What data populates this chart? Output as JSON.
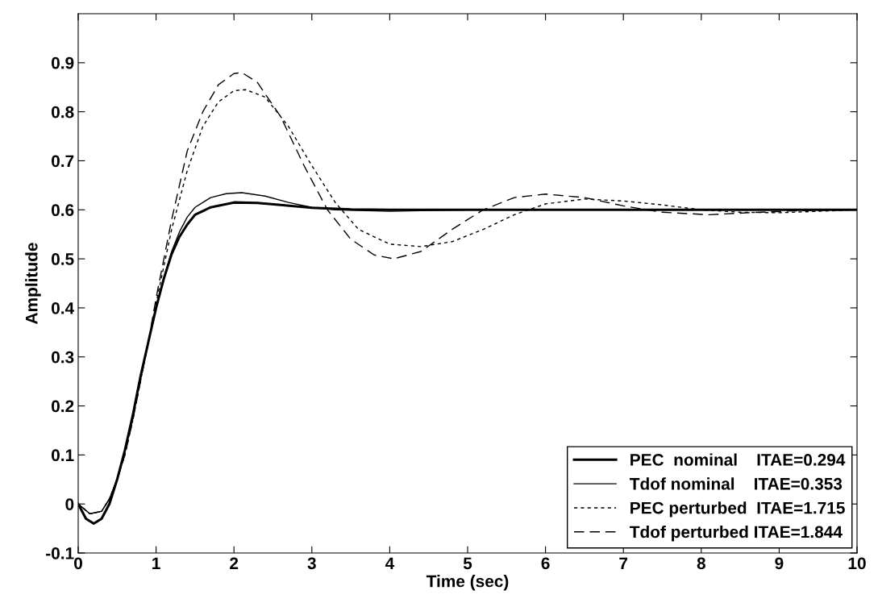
{
  "chart_data": {
    "type": "line",
    "xlabel": "Time (sec)",
    "ylabel": "Amplitude",
    "xlim": [
      0,
      10
    ],
    "xticks": [
      0,
      1,
      2,
      3,
      4,
      5,
      6,
      7,
      8,
      9,
      10
    ],
    "ylim": [
      -0.1,
      1.0
    ],
    "yticks": [
      -0.1,
      0,
      0.1,
      0.2,
      0.3,
      0.4,
      0.5,
      0.6,
      0.7,
      0.8,
      0.9
    ],
    "grid": false,
    "legend": "bottom right",
    "series": [
      {
        "name": "PEC  nominal    ITAE=0.294",
        "color": "#000000",
        "line_style": "solid",
        "x": [
          0,
          0.1,
          0.2,
          0.3,
          0.4,
          0.5,
          0.6,
          0.7,
          0.8,
          0.9,
          1.0,
          1.1,
          1.2,
          1.3,
          1.4,
          1.5,
          1.7,
          2.0,
          2.3,
          2.6,
          3.0,
          3.5,
          4,
          10
        ],
        "values": [
          0,
          -0.03,
          -0.04,
          -0.03,
          0,
          0.05,
          0.11,
          0.18,
          0.26,
          0.33,
          0.4,
          0.46,
          0.51,
          0.545,
          0.57,
          0.59,
          0.605,
          0.615,
          0.614,
          0.61,
          0.604,
          0.601,
          0.6,
          0.6
        ]
      },
      {
        "name": "Tdof nominal    ITAE=0.353",
        "color": "#000000",
        "line_style": "solid",
        "x": [
          0,
          0.15,
          0.3,
          0.4,
          0.5,
          0.6,
          0.7,
          0.8,
          0.9,
          1.0,
          1.1,
          1.2,
          1.3,
          1.4,
          1.5,
          1.7,
          1.9,
          2.1,
          2.4,
          2.7,
          3.0,
          3.3,
          4.0,
          5.0,
          10
        ],
        "values": [
          0,
          -0.02,
          -0.015,
          0.01,
          0.05,
          0.11,
          0.18,
          0.26,
          0.33,
          0.4,
          0.46,
          0.515,
          0.555,
          0.585,
          0.605,
          0.625,
          0.633,
          0.635,
          0.628,
          0.615,
          0.605,
          0.6,
          0.597,
          0.6,
          0.6
        ]
      },
      {
        "name": "PEC perturbed  ITAE=1.715",
        "color": "#000000",
        "line_style": "dotted",
        "x": [
          0,
          0.15,
          0.3,
          0.4,
          0.5,
          0.6,
          0.7,
          0.8,
          0.9,
          1.0,
          1.2,
          1.4,
          1.6,
          1.8,
          2.0,
          2.15,
          2.4,
          2.7,
          3.0,
          3.3,
          3.6,
          4.0,
          4.4,
          4.8,
          5.2,
          5.6,
          6.0,
          6.5,
          7.0,
          7.5,
          8.0,
          8.5,
          9.0,
          9.5,
          10
        ],
        "values": [
          0,
          -0.02,
          -0.015,
          0.01,
          0.05,
          0.1,
          0.17,
          0.25,
          0.33,
          0.41,
          0.56,
          0.68,
          0.77,
          0.82,
          0.843,
          0.845,
          0.83,
          0.77,
          0.69,
          0.615,
          0.56,
          0.53,
          0.525,
          0.535,
          0.56,
          0.59,
          0.612,
          0.622,
          0.618,
          0.61,
          0.6,
          0.595,
          0.594,
          0.597,
          0.6
        ]
      },
      {
        "name": "Tdof perturbed ITAE=1.844",
        "color": "#000000",
        "line_style": "dashed",
        "x": [
          0,
          0.15,
          0.3,
          0.4,
          0.5,
          0.6,
          0.7,
          0.8,
          0.9,
          1.0,
          1.2,
          1.4,
          1.6,
          1.8,
          2.0,
          2.1,
          2.3,
          2.6,
          2.9,
          3.2,
          3.5,
          3.8,
          4.05,
          4.4,
          4.8,
          5.2,
          5.6,
          6.0,
          6.5,
          7.0,
          7.5,
          8.1,
          8.6,
          9.2,
          10
        ],
        "values": [
          0,
          -0.02,
          -0.015,
          0.01,
          0.05,
          0.1,
          0.17,
          0.25,
          0.33,
          0.42,
          0.58,
          0.72,
          0.8,
          0.855,
          0.878,
          0.88,
          0.86,
          0.79,
          0.69,
          0.6,
          0.54,
          0.508,
          0.5,
          0.515,
          0.56,
          0.6,
          0.625,
          0.632,
          0.625,
          0.608,
          0.595,
          0.59,
          0.594,
          0.598,
          0.6
        ]
      }
    ]
  }
}
